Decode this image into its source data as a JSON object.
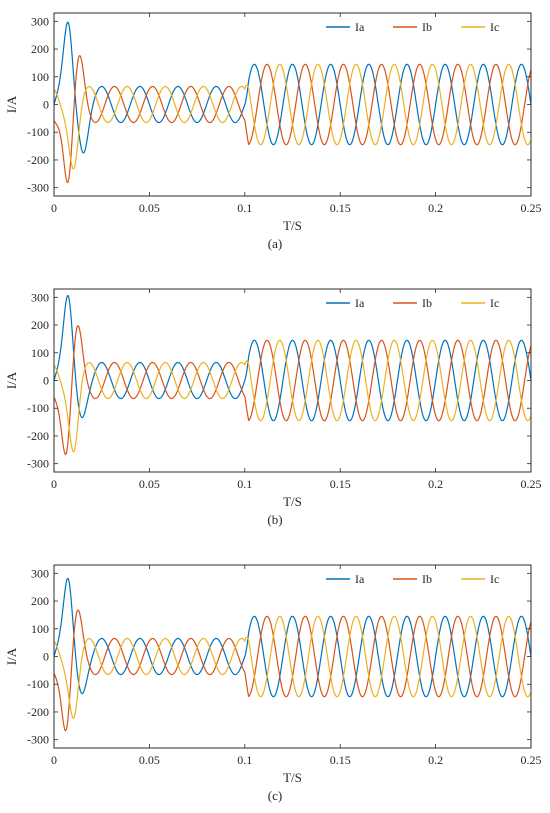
{
  "chart_data": [
    {
      "type": "line",
      "panel_label": "(a)",
      "xlabel": "T/S",
      "ylabel": "I/A",
      "xlim": [
        0,
        0.25
      ],
      "ylim": [
        -330,
        330
      ],
      "xticks": [
        0,
        0.05,
        0.1,
        0.15,
        0.2,
        0.25
      ],
      "yticks": [
        -300,
        -200,
        -100,
        0,
        100,
        200,
        300
      ],
      "grid": false,
      "legend": "top-right",
      "frequency_hz": 50,
      "pre_step_amplitude": 65,
      "post_step_amplitude": 145,
      "step_time": 0.1,
      "transient_end_time": 0.022,
      "transient_peaks": [
        {
          "series": "Ia",
          "t": 0.0075,
          "value": 295
        },
        {
          "series": "Ib",
          "t": 0.0075,
          "value": -280
        },
        {
          "series": "Ic",
          "t": 0.0105,
          "value": -230
        },
        {
          "series": "Ib",
          "t": 0.0135,
          "value": 185
        },
        {
          "series": "Ia",
          "t": 0.0155,
          "value": -175
        }
      ],
      "series": [
        {
          "name": "Ia",
          "color": "#0072BD",
          "phase_deg": 0
        },
        {
          "name": "Ib",
          "color": "#D95319",
          "phase_deg": -120
        },
        {
          "name": "Ic",
          "color": "#EDB120",
          "phase_deg": 120
        }
      ]
    },
    {
      "type": "line",
      "panel_label": "(b)",
      "xlabel": "T/S",
      "ylabel": "I/A",
      "xlim": [
        0,
        0.25
      ],
      "ylim": [
        -330,
        330
      ],
      "xticks": [
        0,
        0.05,
        0.1,
        0.15,
        0.2,
        0.25
      ],
      "yticks": [
        -300,
        -200,
        -100,
        0,
        100,
        200,
        300
      ],
      "grid": false,
      "legend": "top-right",
      "frequency_hz": 50,
      "pre_step_amplitude": 65,
      "post_step_amplitude": 145,
      "step_time": 0.1,
      "transient_end_time": 0.02,
      "transient_peaks": [
        {
          "series": "Ia",
          "t": 0.0075,
          "value": 305
        },
        {
          "series": "Ib",
          "t": 0.0065,
          "value": -265
        },
        {
          "series": "Ic",
          "t": 0.0105,
          "value": -255
        },
        {
          "series": "Ib",
          "t": 0.0125,
          "value": 205
        },
        {
          "series": "Ia",
          "t": 0.0145,
          "value": -135
        }
      ],
      "series": [
        {
          "name": "Ia",
          "color": "#0072BD",
          "phase_deg": 0
        },
        {
          "name": "Ib",
          "color": "#D95319",
          "phase_deg": -120
        },
        {
          "name": "Ic",
          "color": "#EDB120",
          "phase_deg": 120
        }
      ]
    },
    {
      "type": "line",
      "panel_label": "(c)",
      "xlabel": "T/S",
      "ylabel": "I/A",
      "xlim": [
        0,
        0.25
      ],
      "ylim": [
        -330,
        330
      ],
      "xticks": [
        0,
        0.05,
        0.1,
        0.15,
        0.2,
        0.25
      ],
      "yticks": [
        -300,
        -200,
        -100,
        0,
        100,
        200,
        300
      ],
      "grid": false,
      "legend": "top-right",
      "frequency_hz": 50,
      "pre_step_amplitude": 65,
      "post_step_amplitude": 145,
      "step_time": 0.1,
      "transient_end_time": 0.02,
      "transient_peaks": [
        {
          "series": "Ia",
          "t": 0.0075,
          "value": 280
        },
        {
          "series": "Ib",
          "t": 0.0065,
          "value": -265
        },
        {
          "series": "Ic",
          "t": 0.0105,
          "value": -220
        },
        {
          "series": "Ib",
          "t": 0.0125,
          "value": 175
        },
        {
          "series": "Ia",
          "t": 0.0145,
          "value": -135
        }
      ],
      "series": [
        {
          "name": "Ia",
          "color": "#0072BD",
          "phase_deg": 0
        },
        {
          "name": "Ib",
          "color": "#D95319",
          "phase_deg": -120
        },
        {
          "name": "Ic",
          "color": "#EDB120",
          "phase_deg": 120
        }
      ]
    }
  ]
}
